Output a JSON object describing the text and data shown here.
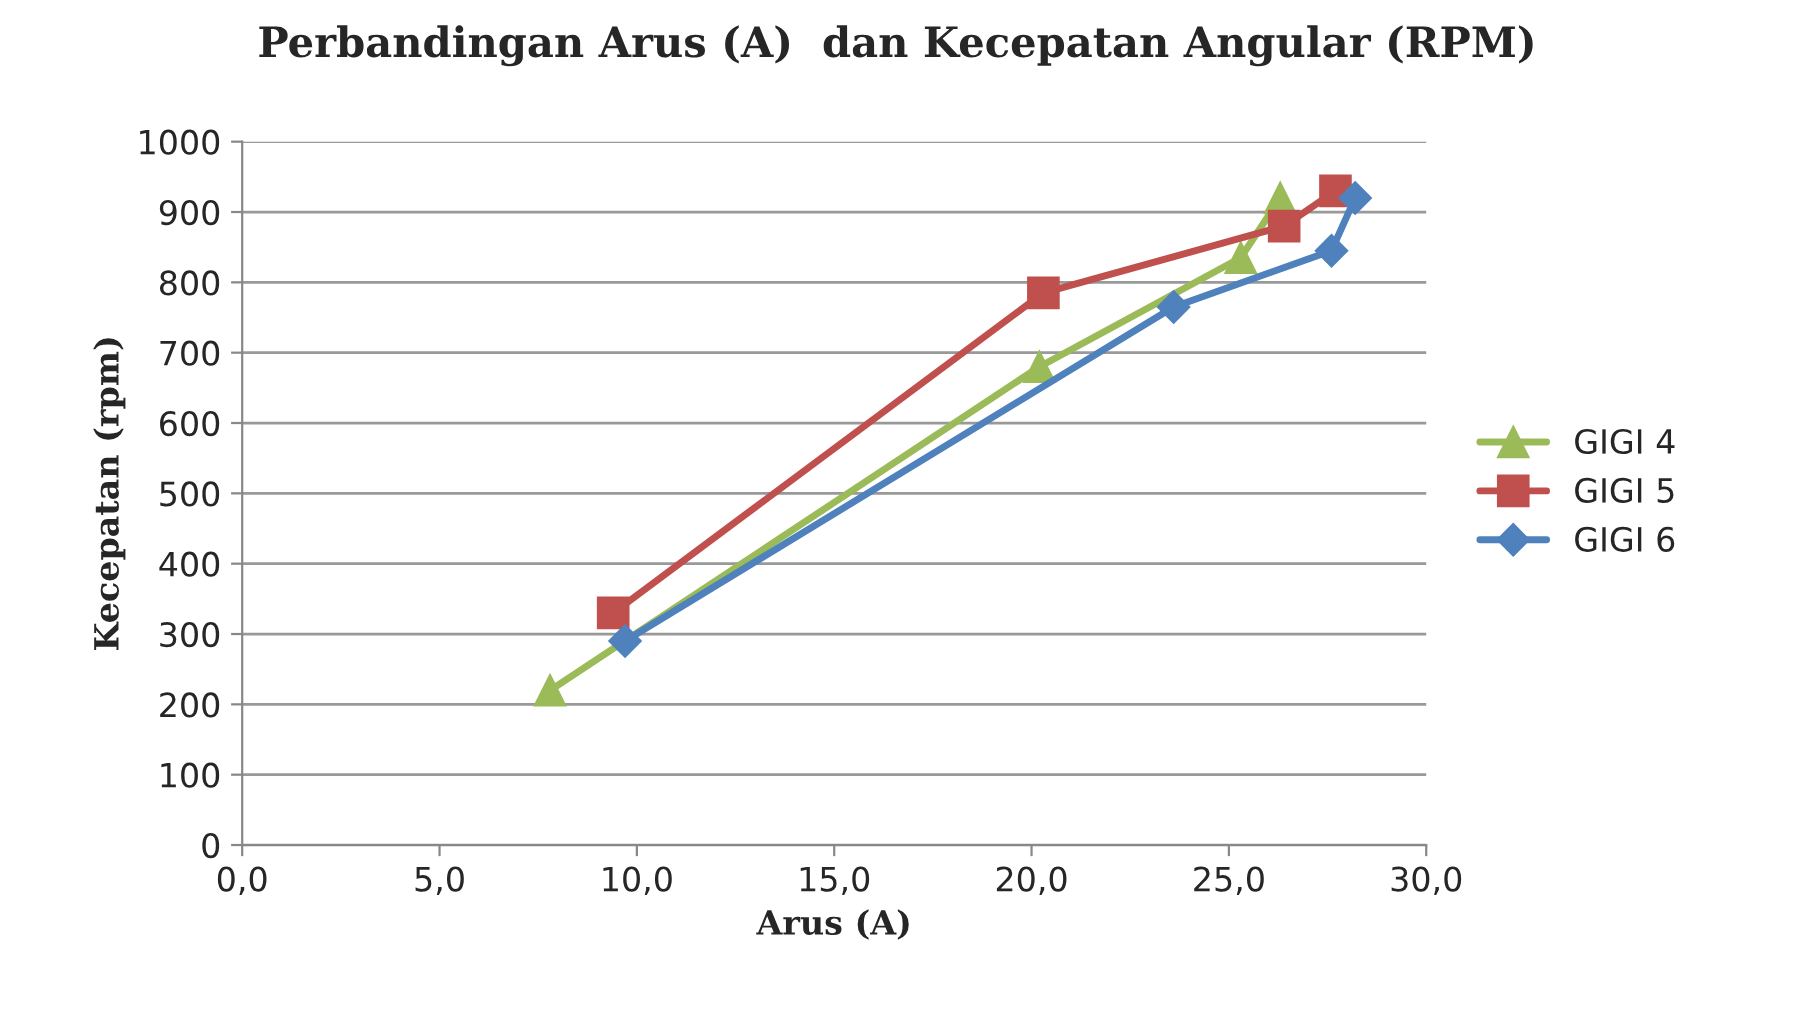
{
  "chart_data": {
    "type": "line",
    "title": "Perbandingan Arus (A)  dan Kecepatan Angular (RPM)",
    "xlabel": "Arus (A)",
    "ylabel": "Kecepatan (rpm)",
    "xlim": [
      0,
      30
    ],
    "xticks": [
      {
        "value": 0,
        "label": "0,0"
      },
      {
        "value": 5,
        "label": "5,0"
      },
      {
        "value": 10,
        "label": "10,0"
      },
      {
        "value": 15,
        "label": "15,0"
      },
      {
        "value": 20,
        "label": "20,0"
      },
      {
        "value": 25,
        "label": "25,0"
      },
      {
        "value": 30,
        "label": "30,0"
      }
    ],
    "ylim": [
      0,
      1000
    ],
    "yticks": [
      0,
      100,
      200,
      300,
      400,
      500,
      600,
      700,
      800,
      900,
      1000
    ],
    "grid": "y",
    "legend": "right",
    "series": [
      {
        "name": "GIGI 4",
        "color": "#9bbb59",
        "marker": "triangle",
        "x": [
          7.8,
          20.2,
          25.3,
          26.3
        ],
        "values": [
          220,
          680,
          835,
          920
        ]
      },
      {
        "name": "GIGI 5",
        "color": "#c0504d",
        "marker": "square",
        "x": [
          9.4,
          20.3,
          26.4,
          27.7
        ],
        "values": [
          330,
          785,
          880,
          930
        ]
      },
      {
        "name": "GIGI 6",
        "color": "#4f81bd",
        "marker": "diamond",
        "x": [
          9.7,
          23.6,
          27.6,
          28.2
        ],
        "values": [
          290,
          765,
          845,
          920
        ]
      }
    ]
  }
}
